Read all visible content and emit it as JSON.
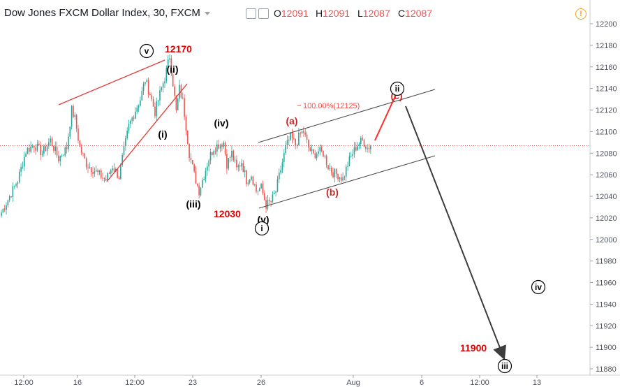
{
  "header": {
    "symbol_title": "Dow Jones FXCM Dollar Index, 30, FXCM",
    "ohlc": [
      {
        "key": "O",
        "value": "12091"
      },
      {
        "key": "H",
        "value": "12091"
      },
      {
        "key": "L",
        "value": "12087"
      },
      {
        "key": "C",
        "value": "12087"
      }
    ],
    "warning_glyph": "!"
  },
  "chart_data": {
    "type": "candlestick",
    "y_axis": {
      "ticks": [
        11880,
        11900,
        11920,
        11940,
        11960,
        11980,
        12000,
        12020,
        12040,
        12060,
        12080,
        12100,
        12120,
        12140,
        12160,
        12180,
        12200
      ],
      "range": [
        11875,
        12207
      ]
    },
    "x_axis": {
      "ticks": [
        "12:00",
        "16",
        "12:00",
        "23",
        "26",
        "Aug",
        "6",
        "12:00",
        "13"
      ]
    },
    "current_price": 12087,
    "colors": {
      "up": "#26a69a",
      "down": "#ef5350",
      "annotation_red": "#e00000",
      "projection": "#3c3c3c",
      "channel": "#444444",
      "fib": "#ef5350"
    },
    "price_path": [
      {
        "i": 0,
        "p": 12025
      },
      {
        "i": 5,
        "p": 12040
      },
      {
        "i": 10,
        "p": 12055
      },
      {
        "i": 15,
        "p": 12082
      },
      {
        "i": 20,
        "p": 12088
      },
      {
        "i": 25,
        "p": 12080
      },
      {
        "i": 30,
        "p": 12092
      },
      {
        "i": 35,
        "p": 12075
      },
      {
        "i": 40,
        "p": 12085
      },
      {
        "i": 43,
        "p": 12120
      },
      {
        "i": 45,
        "p": 12112
      },
      {
        "i": 48,
        "p": 12085
      },
      {
        "i": 52,
        "p": 12070
      },
      {
        "i": 56,
        "p": 12065
      },
      {
        "i": 60,
        "p": 12060
      },
      {
        "i": 64,
        "p": 12055
      },
      {
        "i": 68,
        "p": 12068
      },
      {
        "i": 72,
        "p": 12058
      },
      {
        "i": 74,
        "p": 12075
      },
      {
        "i": 78,
        "p": 12105
      },
      {
        "i": 82,
        "p": 12120
      },
      {
        "i": 85,
        "p": 12130
      },
      {
        "i": 88,
        "p": 12148
      },
      {
        "i": 91,
        "p": 12135
      },
      {
        "i": 94,
        "p": 12118
      },
      {
        "i": 97,
        "p": 12135
      },
      {
        "i": 100,
        "p": 12150
      },
      {
        "i": 103,
        "p": 12170
      },
      {
        "i": 105,
        "p": 12145
      },
      {
        "i": 107,
        "p": 12118
      },
      {
        "i": 109,
        "p": 12140
      },
      {
        "i": 111,
        "p": 12128
      },
      {
        "i": 113,
        "p": 12105
      },
      {
        "i": 115,
        "p": 12080
      },
      {
        "i": 118,
        "p": 12060
      },
      {
        "i": 121,
        "p": 12045
      },
      {
        "i": 124,
        "p": 12060
      },
      {
        "i": 127,
        "p": 12075
      },
      {
        "i": 130,
        "p": 12085
      },
      {
        "i": 133,
        "p": 12088
      },
      {
        "i": 136,
        "p": 12090
      },
      {
        "i": 138,
        "p": 12070
      },
      {
        "i": 141,
        "p": 12080
      },
      {
        "i": 144,
        "p": 12065
      },
      {
        "i": 147,
        "p": 12072
      },
      {
        "i": 150,
        "p": 12055
      },
      {
        "i": 153,
        "p": 12060
      },
      {
        "i": 156,
        "p": 12045
      },
      {
        "i": 159,
        "p": 12048
      },
      {
        "i": 162,
        "p": 12032
      },
      {
        "i": 165,
        "p": 12035
      },
      {
        "i": 168,
        "p": 12045
      },
      {
        "i": 171,
        "p": 12065
      },
      {
        "i": 174,
        "p": 12085
      },
      {
        "i": 177,
        "p": 12095
      },
      {
        "i": 180,
        "p": 12088
      },
      {
        "i": 183,
        "p": 12098
      },
      {
        "i": 185,
        "p": 12100
      },
      {
        "i": 188,
        "p": 12085
      },
      {
        "i": 191,
        "p": 12078
      },
      {
        "i": 194,
        "p": 12082
      },
      {
        "i": 197,
        "p": 12080
      },
      {
        "i": 200,
        "p": 12068
      },
      {
        "i": 203,
        "p": 12062
      },
      {
        "i": 206,
        "p": 12060
      },
      {
        "i": 209,
        "p": 12056
      },
      {
        "i": 212,
        "p": 12070
      },
      {
        "i": 215,
        "p": 12080
      },
      {
        "i": 218,
        "p": 12088
      },
      {
        "i": 221,
        "p": 12092
      },
      {
        "i": 224,
        "p": 12085
      },
      {
        "i": 226,
        "p": 12087
      }
    ],
    "annotations": {
      "price_labels": [
        "12170",
        "12030",
        "11900"
      ],
      "wave_labels": [
        "v",
        "(ii)",
        "(i)",
        "(iii)",
        "(iv)",
        "(v)",
        "i",
        "(a)",
        "(b)",
        "(c)",
        "ii",
        "iv",
        "iii"
      ],
      "fib_label": "100.00%(12125)"
    }
  }
}
